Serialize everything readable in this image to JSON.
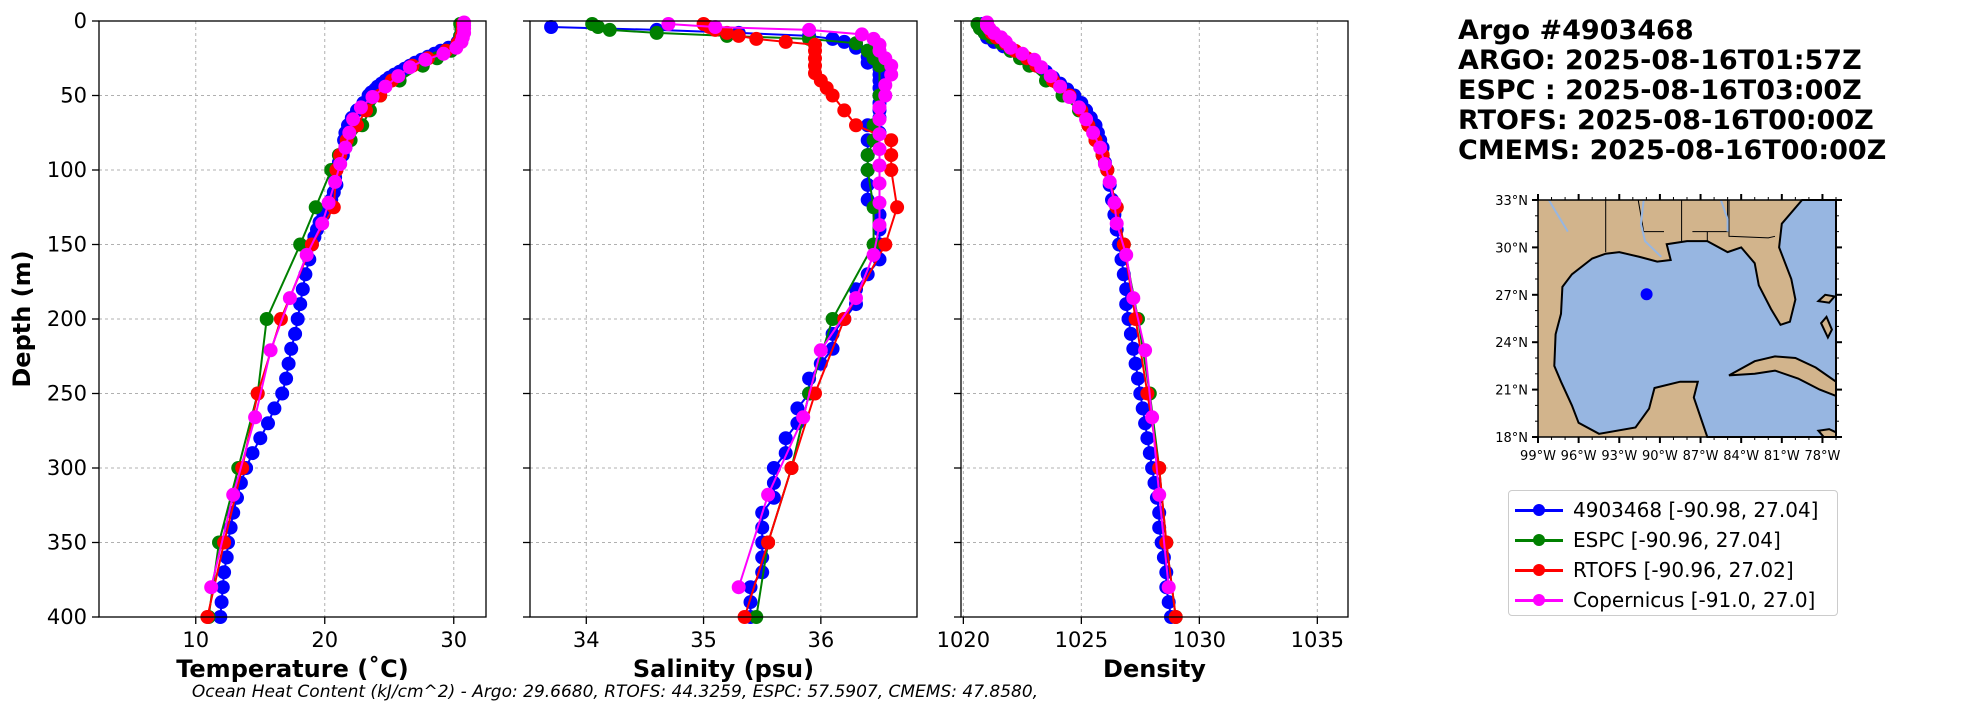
{
  "header": {
    "argo_id": "Argo #4903468",
    "argo_time": "ARGO: 2025-08-16T01:57Z",
    "espc_time": "ESPC : 2025-08-16T03:00Z",
    "rtofs_time": "RTOFS: 2025-08-16T00:00Z",
    "cmems_time": "CMEMS: 2025-08-16T00:00Z"
  },
  "footer": "Ocean Heat Content (kJ/cm^2) - Argo: 29.6680,  RTOFS: 44.3259,  ESPC: 57.5907,  CMEMS: 47.8580,",
  "colors": {
    "argo": "#0000ff",
    "espc": "#008000",
    "rtofs": "#ff0000",
    "copernicus": "#ff00ff",
    "land": "#d2b48c",
    "ocean": "#97b6e1"
  },
  "legend": [
    {
      "label": "4903468 [-90.98, 27.04]",
      "color": "#0000ff"
    },
    {
      "label": "ESPC [-90.96, 27.04]",
      "color": "#008000"
    },
    {
      "label": "RTOFS [-90.96, 27.02]",
      "color": "#ff0000"
    },
    {
      "label": "Copernicus [-91.0, 27.0]",
      "color": "#ff00ff"
    }
  ],
  "chart_data": [
    {
      "type": "line",
      "title": "",
      "xlabel": "Temperature (˚C)",
      "ylabel": "Depth (m)",
      "xlim": [
        2.5,
        32.5
      ],
      "ylim": [
        400,
        0
      ],
      "xticks": [
        10,
        20,
        30
      ],
      "yticks": [
        0,
        50,
        100,
        150,
        200,
        250,
        300,
        350,
        400
      ],
      "grid": true,
      "series": [
        {
          "name": "4903468",
          "color": "#0000ff",
          "marker_size": 7,
          "depth": [
            2,
            6,
            10,
            14,
            18,
            20,
            22,
            24,
            26,
            28,
            30,
            32,
            34,
            36,
            38,
            40,
            42,
            44,
            46,
            48,
            50,
            55,
            60,
            65,
            70,
            75,
            80,
            85,
            90,
            95,
            100,
            105,
            110,
            115,
            120,
            125,
            130,
            135,
            140,
            145,
            150,
            160,
            170,
            180,
            190,
            200,
            210,
            220,
            230,
            240,
            250,
            260,
            270,
            280,
            290,
            300,
            310,
            320,
            330,
            340,
            350,
            360,
            370,
            380,
            390,
            400
          ],
          "values": [
            30.6,
            30.6,
            30.5,
            30.3,
            29.6,
            29.0,
            28.5,
            28.0,
            27.5,
            27.0,
            26.6,
            26.2,
            25.8,
            25.4,
            25.0,
            24.7,
            24.4,
            24.1,
            23.9,
            23.6,
            23.4,
            23.0,
            22.5,
            22.1,
            21.8,
            21.6,
            21.5,
            21.6,
            21.4,
            21.1,
            20.9,
            20.8,
            20.9,
            20.7,
            20.5,
            20.2,
            19.9,
            19.6,
            19.4,
            19.2,
            19.0,
            18.8,
            18.5,
            18.3,
            18.1,
            17.9,
            17.7,
            17.4,
            17.2,
            17.0,
            16.7,
            16.1,
            15.6,
            15.0,
            14.4,
            13.9,
            13.5,
            13.2,
            12.9,
            12.7,
            12.5,
            12.4,
            12.2,
            12.1,
            12.0,
            11.9
          ]
        },
        {
          "name": "ESPC",
          "color": "#008000",
          "marker_size": 7,
          "depth": [
            2,
            6,
            10,
            15,
            20,
            25,
            30,
            40,
            50,
            60,
            70,
            80,
            90,
            100,
            125,
            150,
            200,
            250,
            300,
            350,
            400
          ],
          "values": [
            30.5,
            30.6,
            30.5,
            30.3,
            29.8,
            28.7,
            27.6,
            25.8,
            24.3,
            23.5,
            22.9,
            22.0,
            21.1,
            20.5,
            19.3,
            18.1,
            15.5,
            14.8,
            13.3,
            11.8,
            11.0
          ]
        },
        {
          "name": "RTOFS",
          "color": "#ff0000",
          "marker_size": 7,
          "depth": [
            2,
            6,
            10,
            15,
            20,
            25,
            30,
            40,
            50,
            60,
            70,
            80,
            90,
            100,
            125,
            150,
            200,
            250,
            300,
            350,
            400
          ],
          "values": [
            30.7,
            30.7,
            30.6,
            30.3,
            29.4,
            28.0,
            26.8,
            25.2,
            24.3,
            23.2,
            22.5,
            21.7,
            21.2,
            20.9,
            20.7,
            19.0,
            16.6,
            14.8,
            13.6,
            12.2,
            10.9
          ]
        },
        {
          "name": "Copernicus",
          "color": "#ff00ff",
          "marker_size": 7,
          "depth": [
            1,
            3,
            5,
            8,
            11,
            14,
            18,
            22,
            26,
            31,
            37,
            44,
            51,
            58,
            66,
            75,
            85,
            96,
            108,
            122,
            136,
            157,
            186,
            221,
            266,
            318,
            380
          ],
          "values": [
            30.8,
            30.8,
            30.8,
            30.8,
            30.7,
            30.6,
            30.2,
            29.2,
            27.8,
            26.6,
            25.7,
            24.7,
            23.7,
            22.8,
            22.2,
            21.9,
            21.6,
            21.2,
            20.8,
            20.3,
            19.8,
            18.6,
            17.3,
            15.8,
            14.6,
            12.9,
            11.2
          ]
        }
      ]
    },
    {
      "type": "line",
      "title": "",
      "xlabel": "Salinity (psu)",
      "ylabel": "",
      "xlim": [
        33.52,
        36.82
      ],
      "ylim": [
        400,
        0
      ],
      "xticks": [
        34,
        35,
        36
      ],
      "grid": true,
      "series": [
        {
          "name": "4903468",
          "color": "#0000ff",
          "marker_size": 7,
          "depth": [
            4,
            6,
            8,
            10,
            12,
            14,
            16,
            18,
            20,
            24,
            28,
            32,
            36,
            40,
            45,
            50,
            55,
            60,
            65,
            70,
            75,
            80,
            90,
            100,
            110,
            120,
            130,
            140,
            150,
            160,
            170,
            180,
            190,
            200,
            210,
            220,
            230,
            240,
            250,
            260,
            270,
            280,
            290,
            300,
            310,
            320,
            330,
            340,
            350,
            360,
            370,
            380,
            390,
            400
          ],
          "values": [
            33.7,
            34.6,
            35.3,
            35.9,
            36.1,
            36.2,
            36.3,
            36.3,
            36.4,
            36.4,
            36.4,
            36.5,
            36.5,
            36.5,
            36.5,
            36.5,
            36.5,
            36.5,
            36.5,
            36.4,
            36.5,
            36.4,
            36.4,
            36.4,
            36.4,
            36.4,
            36.5,
            36.5,
            36.5,
            36.5,
            36.4,
            36.3,
            36.3,
            36.2,
            36.1,
            36.1,
            36.0,
            35.9,
            35.9,
            35.8,
            35.8,
            35.7,
            35.7,
            35.6,
            35.6,
            35.6,
            35.5,
            35.5,
            35.5,
            35.5,
            35.5,
            35.4,
            35.4,
            35.4
          ]
        },
        {
          "name": "ESPC",
          "color": "#008000",
          "marker_size": 7,
          "depth": [
            2,
            4,
            6,
            8,
            10,
            12,
            15,
            20,
            25,
            30,
            50,
            70,
            80,
            90,
            100,
            125,
            150,
            200,
            250,
            300,
            350,
            400
          ],
          "values": [
            34.05,
            34.1,
            34.2,
            34.6,
            35.2,
            35.9,
            36.3,
            36.4,
            36.45,
            36.5,
            36.5,
            36.45,
            36.45,
            36.4,
            36.4,
            36.45,
            36.45,
            36.1,
            35.9,
            35.75,
            35.55,
            35.45
          ]
        },
        {
          "name": "RTOFS",
          "color": "#ff0000",
          "marker_size": 7,
          "depth": [
            2,
            4,
            6,
            8,
            10,
            12,
            14,
            16,
            20,
            25,
            30,
            35,
            40,
            45,
            50,
            60,
            70,
            80,
            90,
            100,
            125,
            150,
            200,
            250,
            300,
            350,
            400
          ],
          "values": [
            35.0,
            35.05,
            35.1,
            35.2,
            35.3,
            35.45,
            35.7,
            35.95,
            35.95,
            35.95,
            35.95,
            35.95,
            36.0,
            36.05,
            36.1,
            36.2,
            36.3,
            36.6,
            36.6,
            36.6,
            36.65,
            36.55,
            36.2,
            35.95,
            35.75,
            35.55,
            35.35
          ]
        },
        {
          "name": "Copernicus",
          "color": "#ff00ff",
          "marker_size": 7,
          "depth": [
            2,
            4,
            6,
            9,
            12,
            16,
            20,
            25,
            30,
            36,
            43,
            50,
            58,
            66,
            76,
            86,
            97,
            109,
            122,
            137,
            157,
            186,
            221,
            266,
            318,
            380
          ],
          "values": [
            34.7,
            35.1,
            35.9,
            36.35,
            36.45,
            36.5,
            36.5,
            36.55,
            36.6,
            36.6,
            36.55,
            36.55,
            36.5,
            36.5,
            36.5,
            36.5,
            36.5,
            36.5,
            36.5,
            36.5,
            36.45,
            36.3,
            36.0,
            35.85,
            35.55,
            35.3
          ]
        }
      ]
    },
    {
      "type": "line",
      "title": "",
      "xlabel": "Density",
      "ylabel": "",
      "xlim": [
        1019.9,
        1036.3
      ],
      "ylim": [
        400,
        0
      ],
      "xticks": [
        1020,
        1025,
        1030,
        1035
      ],
      "grid": true,
      "series": [
        {
          "name": "4903468",
          "color": "#0000ff",
          "marker_size": 7,
          "depth": [
            2,
            5,
            8,
            11,
            14,
            17,
            20,
            23,
            26,
            30,
            34,
            38,
            42,
            46,
            50,
            55,
            60,
            65,
            70,
            75,
            80,
            85,
            90,
            95,
            100,
            110,
            120,
            130,
            140,
            150,
            160,
            170,
            180,
            190,
            200,
            210,
            220,
            230,
            240,
            250,
            260,
            270,
            280,
            290,
            300,
            310,
            320,
            330,
            340,
            350,
            360,
            370,
            380,
            390,
            400
          ],
          "values": [
            1020.8,
            1020.8,
            1020.9,
            1021.0,
            1021.3,
            1021.7,
            1022.0,
            1022.4,
            1022.7,
            1023.1,
            1023.5,
            1023.8,
            1024.1,
            1024.4,
            1024.7,
            1025.0,
            1025.2,
            1025.4,
            1025.6,
            1025.7,
            1025.8,
            1025.9,
            1025.9,
            1026.0,
            1026.1,
            1026.2,
            1026.3,
            1026.4,
            1026.5,
            1026.6,
            1026.7,
            1026.8,
            1026.9,
            1026.9,
            1027.0,
            1027.1,
            1027.2,
            1027.3,
            1027.4,
            1027.5,
            1027.6,
            1027.7,
            1027.8,
            1027.9,
            1028.0,
            1028.1,
            1028.2,
            1028.3,
            1028.3,
            1028.4,
            1028.5,
            1028.6,
            1028.6,
            1028.7,
            1028.8
          ]
        },
        {
          "name": "ESPC",
          "color": "#008000",
          "marker_size": 7,
          "depth": [
            2,
            5,
            8,
            11,
            15,
            20,
            25,
            30,
            40,
            50,
            60,
            70,
            80,
            90,
            100,
            125,
            150,
            200,
            250,
            300,
            350,
            400
          ],
          "values": [
            1020.6,
            1020.7,
            1020.9,
            1021.2,
            1021.6,
            1022.0,
            1022.4,
            1022.8,
            1023.5,
            1024.2,
            1024.9,
            1025.3,
            1025.6,
            1025.9,
            1026.1,
            1026.5,
            1026.8,
            1027.4,
            1027.9,
            1028.3,
            1028.6,
            1029.0
          ]
        },
        {
          "name": "RTOFS",
          "color": "#ff0000",
          "marker_size": 7,
          "depth": [
            2,
            5,
            8,
            11,
            15,
            20,
            25,
            30,
            40,
            50,
            60,
            70,
            80,
            90,
            100,
            125,
            150,
            200,
            250,
            300,
            350,
            400
          ],
          "values": [
            1021.0,
            1021.1,
            1021.2,
            1021.4,
            1021.8,
            1022.2,
            1022.7,
            1023.1,
            1023.8,
            1024.5,
            1025.0,
            1025.3,
            1025.6,
            1025.9,
            1026.1,
            1026.5,
            1026.8,
            1027.3,
            1027.8,
            1028.3,
            1028.6,
            1029.0
          ]
        },
        {
          "name": "Copernicus",
          "color": "#ff00ff",
          "marker_size": 7,
          "depth": [
            1,
            3,
            5,
            8,
            11,
            14,
            18,
            22,
            26,
            31,
            37,
            44,
            51,
            58,
            66,
            75,
            85,
            96,
            108,
            122,
            136,
            157,
            186,
            221,
            266,
            318,
            380
          ],
          "values": [
            1021.0,
            1021.0,
            1021.1,
            1021.3,
            1021.6,
            1021.8,
            1022.0,
            1022.5,
            1023.0,
            1023.3,
            1023.7,
            1024.1,
            1024.5,
            1024.9,
            1025.2,
            1025.5,
            1025.8,
            1026.0,
            1026.2,
            1026.4,
            1026.5,
            1026.9,
            1027.2,
            1027.7,
            1028.0,
            1028.3,
            1028.7
          ]
        }
      ]
    }
  ],
  "map": {
    "type": "map",
    "lon_range": [
      -99,
      -77
    ],
    "lat_range": [
      18,
      33
    ],
    "lon_ticks": [
      "99°W",
      "96°W",
      "93°W",
      "90°W",
      "87°W",
      "84°W",
      "81°W",
      "78°W"
    ],
    "lat_ticks": [
      "33°N",
      "30°N",
      "27°N",
      "24°N",
      "21°N",
      "18°N"
    ],
    "float_location": {
      "lon": -90.98,
      "lat": 27.04,
      "color": "#0000ff"
    }
  }
}
